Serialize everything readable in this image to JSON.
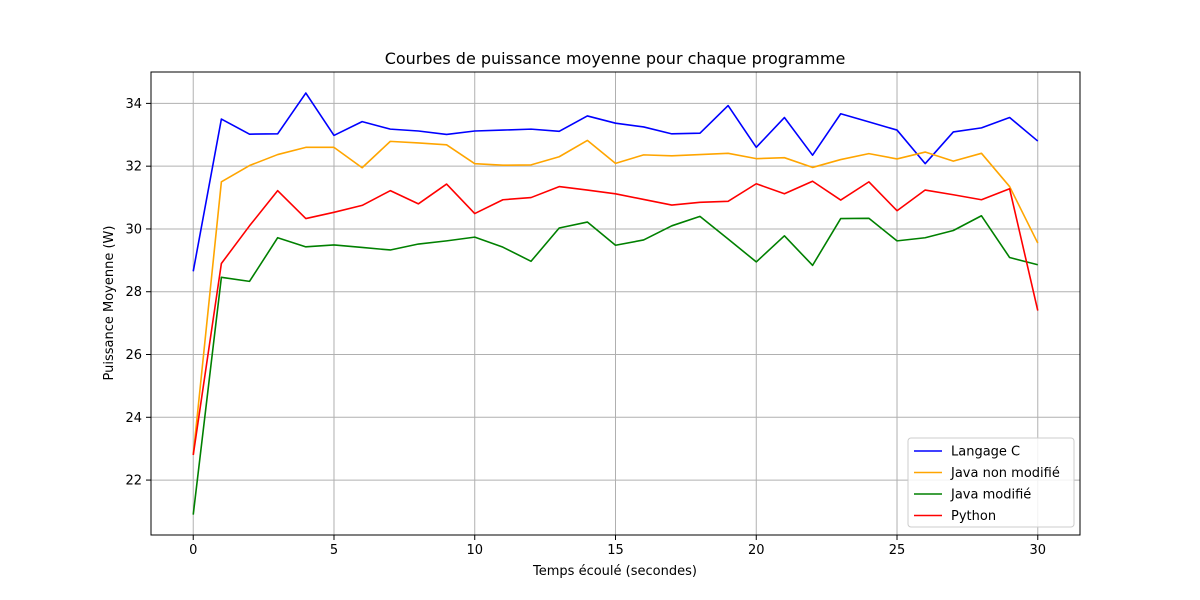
{
  "chart_data": {
    "type": "line",
    "title": "Courbes de puissance moyenne pour chaque programme",
    "xlabel": "Temps écoulé (secondes)",
    "ylabel": "Puissance Moyenne (W)",
    "xlim": [
      -1.5,
      31.5
    ],
    "ylim": [
      20.25,
      35.0
    ],
    "xticks": [
      0,
      5,
      10,
      15,
      20,
      25,
      30
    ],
    "yticks": [
      22,
      24,
      26,
      28,
      30,
      32,
      34
    ],
    "grid": true,
    "legend_position": "lower-right",
    "x": [
      0,
      1,
      2,
      3,
      4,
      5,
      6,
      7,
      8,
      9,
      10,
      11,
      12,
      13,
      14,
      15,
      16,
      17,
      18,
      19,
      20,
      21,
      22,
      23,
      24,
      25,
      26,
      27,
      28,
      29,
      30
    ],
    "series": [
      {
        "name": "Langage C",
        "color": "#0000ff",
        "values": [
          28.65,
          33.5,
          33.02,
          33.03,
          34.33,
          32.98,
          33.42,
          33.18,
          33.12,
          33.01,
          33.12,
          33.15,
          33.18,
          33.11,
          33.6,
          33.37,
          33.25,
          33.03,
          33.05,
          33.93,
          32.6,
          33.55,
          32.35,
          33.67,
          33.41,
          33.15,
          32.08,
          33.09,
          33.22,
          33.55,
          32.8
        ]
      },
      {
        "name": "Java non modifié",
        "color": "#ffa500",
        "values": [
          22.8,
          31.5,
          32.02,
          32.37,
          32.6,
          32.6,
          31.95,
          32.79,
          32.74,
          32.68,
          32.08,
          32.03,
          32.04,
          32.3,
          32.82,
          32.09,
          32.36,
          32.33,
          32.37,
          32.41,
          32.24,
          32.27,
          31.96,
          32.21,
          32.4,
          32.23,
          32.45,
          32.16,
          32.41,
          31.35,
          29.55
        ]
      },
      {
        "name": "Java modifié",
        "color": "#008000",
        "values": [
          20.9,
          28.46,
          28.33,
          29.72,
          29.43,
          29.49,
          29.41,
          29.33,
          29.52,
          29.62,
          29.74,
          29.42,
          28.97,
          30.03,
          30.22,
          29.48,
          29.65,
          30.1,
          30.4,
          29.68,
          28.95,
          29.78,
          28.84,
          30.33,
          30.34,
          29.62,
          29.72,
          29.95,
          30.42,
          29.09,
          28.86
        ]
      },
      {
        "name": "Python",
        "color": "#ff0000",
        "values": [
          22.8,
          28.9,
          30.1,
          31.22,
          30.33,
          30.53,
          30.75,
          31.22,
          30.8,
          31.43,
          30.49,
          30.93,
          31.0,
          31.35,
          31.24,
          31.12,
          30.94,
          30.76,
          30.85,
          30.88,
          31.44,
          31.12,
          31.52,
          30.92,
          31.5,
          30.58,
          31.24,
          31.09,
          30.93,
          31.28,
          27.4
        ]
      }
    ]
  }
}
